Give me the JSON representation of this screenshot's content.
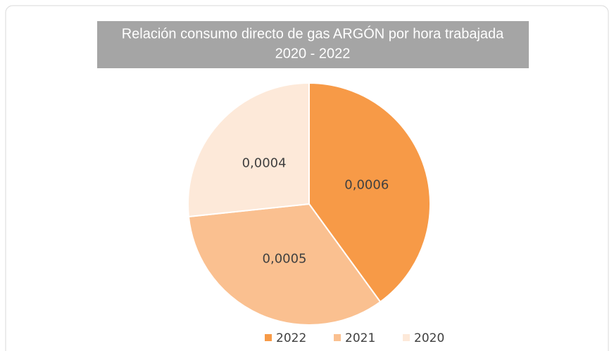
{
  "chart_data": {
    "type": "pie",
    "title": "Relación consumo directo de gas ARGÓN por hora trabajada",
    "subtitle": "2020 - 2022",
    "categories": [
      "2022",
      "2021",
      "2020"
    ],
    "values": [
      0.0006,
      0.0005,
      0.0004
    ],
    "value_labels": [
      "0,0006",
      "0,0005",
      "0,0004"
    ],
    "colors": [
      "#f79a47",
      "#fac090",
      "#fde9d9"
    ],
    "legend": "bottom"
  }
}
